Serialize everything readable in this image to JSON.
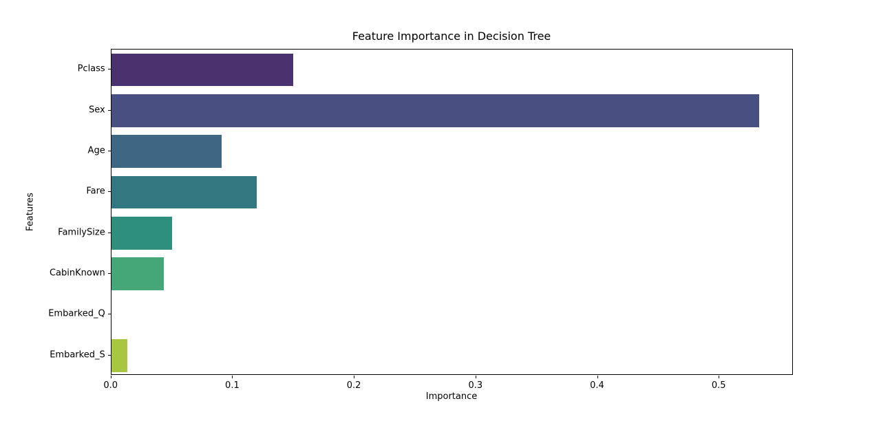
{
  "chart_data": {
    "type": "bar",
    "orientation": "horizontal",
    "title": "Feature Importance in Decision Tree",
    "xlabel": "Importance",
    "ylabel": "Features",
    "categories": [
      "Pclass",
      "Sex",
      "Age",
      "Fare",
      "FamilySize",
      "CabinKnown",
      "Embarked_Q",
      "Embarked_S"
    ],
    "values": [
      0.15,
      0.534,
      0.091,
      0.12,
      0.05,
      0.043,
      0.0,
      0.013
    ],
    "bar_colors": [
      "#4a326e",
      "#475080",
      "#3d6782",
      "#337881",
      "#2f8f7e",
      "#45a778",
      "#76bf69",
      "#a7c743"
    ],
    "palette": "viridis-desaturated",
    "xlim": [
      0,
      0.561
    ],
    "xtick_values": [
      0.0,
      0.1,
      0.2,
      0.3,
      0.4,
      0.5
    ],
    "xtick_labels": [
      "0.0",
      "0.1",
      "0.2",
      "0.3",
      "0.4",
      "0.5"
    ],
    "grid": false,
    "legend": "none",
    "spines": "full-box",
    "background_color": "#ffffff",
    "bar_fraction_of_band": 0.8
  }
}
